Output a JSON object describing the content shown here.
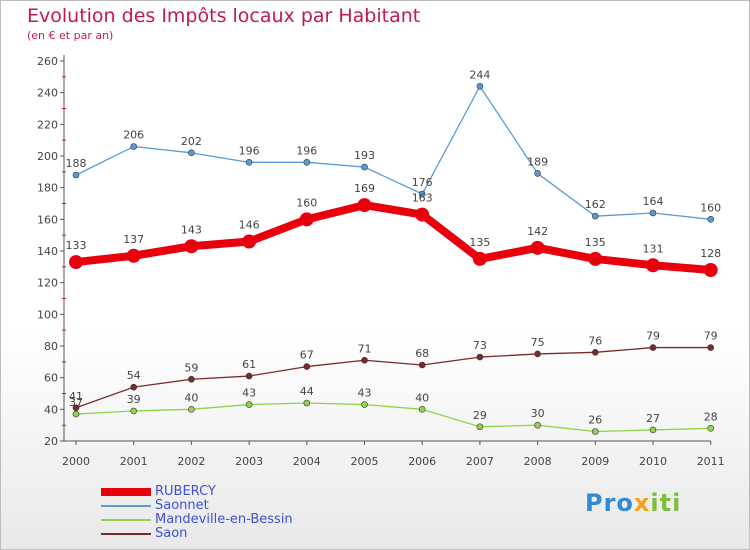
{
  "title": "Evolution des Impôts locaux par Habitant",
  "subtitle": "(en € et par an)",
  "logo": {
    "text": "Proxiti"
  },
  "chart_data": {
    "type": "line",
    "x": [
      "2000",
      "2001",
      "2002",
      "2003",
      "2004",
      "2005",
      "2006",
      "2007",
      "2008",
      "2009",
      "2010",
      "2011"
    ],
    "ylim": [
      20,
      260
    ],
    "yticks": [
      20,
      40,
      60,
      80,
      100,
      120,
      140,
      160,
      180,
      200,
      220,
      240,
      260
    ],
    "grid": false,
    "legend_position": "bottom-left",
    "series": [
      {
        "name": "Saonnet",
        "color": "#5b9bd5",
        "values": [
          188,
          206,
          202,
          196,
          196,
          193,
          176,
          244,
          189,
          162,
          164,
          160
        ]
      },
      {
        "name": "Saon",
        "color": "#7b2a2a",
        "values": [
          41,
          54,
          59,
          61,
          67,
          71,
          68,
          73,
          75,
          76,
          79,
          79
        ]
      },
      {
        "name": "Mandeville-en-Bessin",
        "color": "#8fd44a",
        "values": [
          37,
          39,
          40,
          43,
          44,
          43,
          40,
          29,
          30,
          26,
          27,
          28
        ]
      },
      {
        "name": "RUBERCY",
        "color": "#e8000d",
        "values": [
          133,
          137,
          143,
          146,
          160,
          169,
          163,
          135,
          142,
          135,
          131,
          128
        ]
      }
    ],
    "legend_order": [
      "RUBERCY",
      "Saonnet",
      "Mandeville-en-Bessin",
      "Saon"
    ]
  }
}
